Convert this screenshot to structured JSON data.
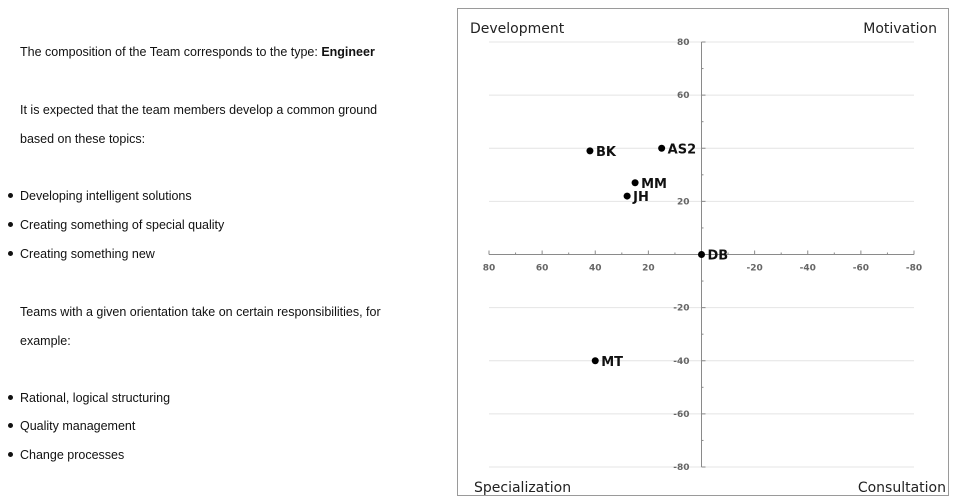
{
  "left": {
    "composition_prefix": "The composition of the Team corresponds to the type: ",
    "composition_type": "Engineer",
    "expected_line1": "It is expected that the team members develop a common ground",
    "expected_line2": "based on these topics:",
    "topics": [
      "Developing intelligent solutions",
      "Creating something of special quality",
      "Creating something new"
    ],
    "responsibilities_line1": "Teams with a given orientation take on certain responsibilities, for",
    "responsibilities_line2": "example:",
    "responsibilities": [
      "Rational, logical structuring",
      "Quality management",
      "Change processes"
    ]
  },
  "chart_data": {
    "type": "scatter",
    "quadrant_labels": {
      "top_left": "Development",
      "top_right": "Motivation",
      "bottom_left": "Specialization",
      "bottom_right": "Consultation"
    },
    "xlim": [
      80,
      -80
    ],
    "ylim": [
      -80,
      80
    ],
    "x_ticks": [
      80,
      60,
      40,
      20,
      -20,
      -40,
      -60,
      -80
    ],
    "y_ticks": [
      80,
      60,
      20,
      -20,
      -40,
      -60,
      -80
    ],
    "grid": true,
    "points": [
      {
        "label": "BK",
        "x": 42,
        "y": 39
      },
      {
        "label": "AS2",
        "x": 15,
        "y": 40
      },
      {
        "label": "MM",
        "x": 25,
        "y": 27
      },
      {
        "label": "JH",
        "x": 28,
        "y": 22
      },
      {
        "label": "DB",
        "x": 0,
        "y": 0
      },
      {
        "label": "MT",
        "x": 40,
        "y": -40
      }
    ]
  }
}
